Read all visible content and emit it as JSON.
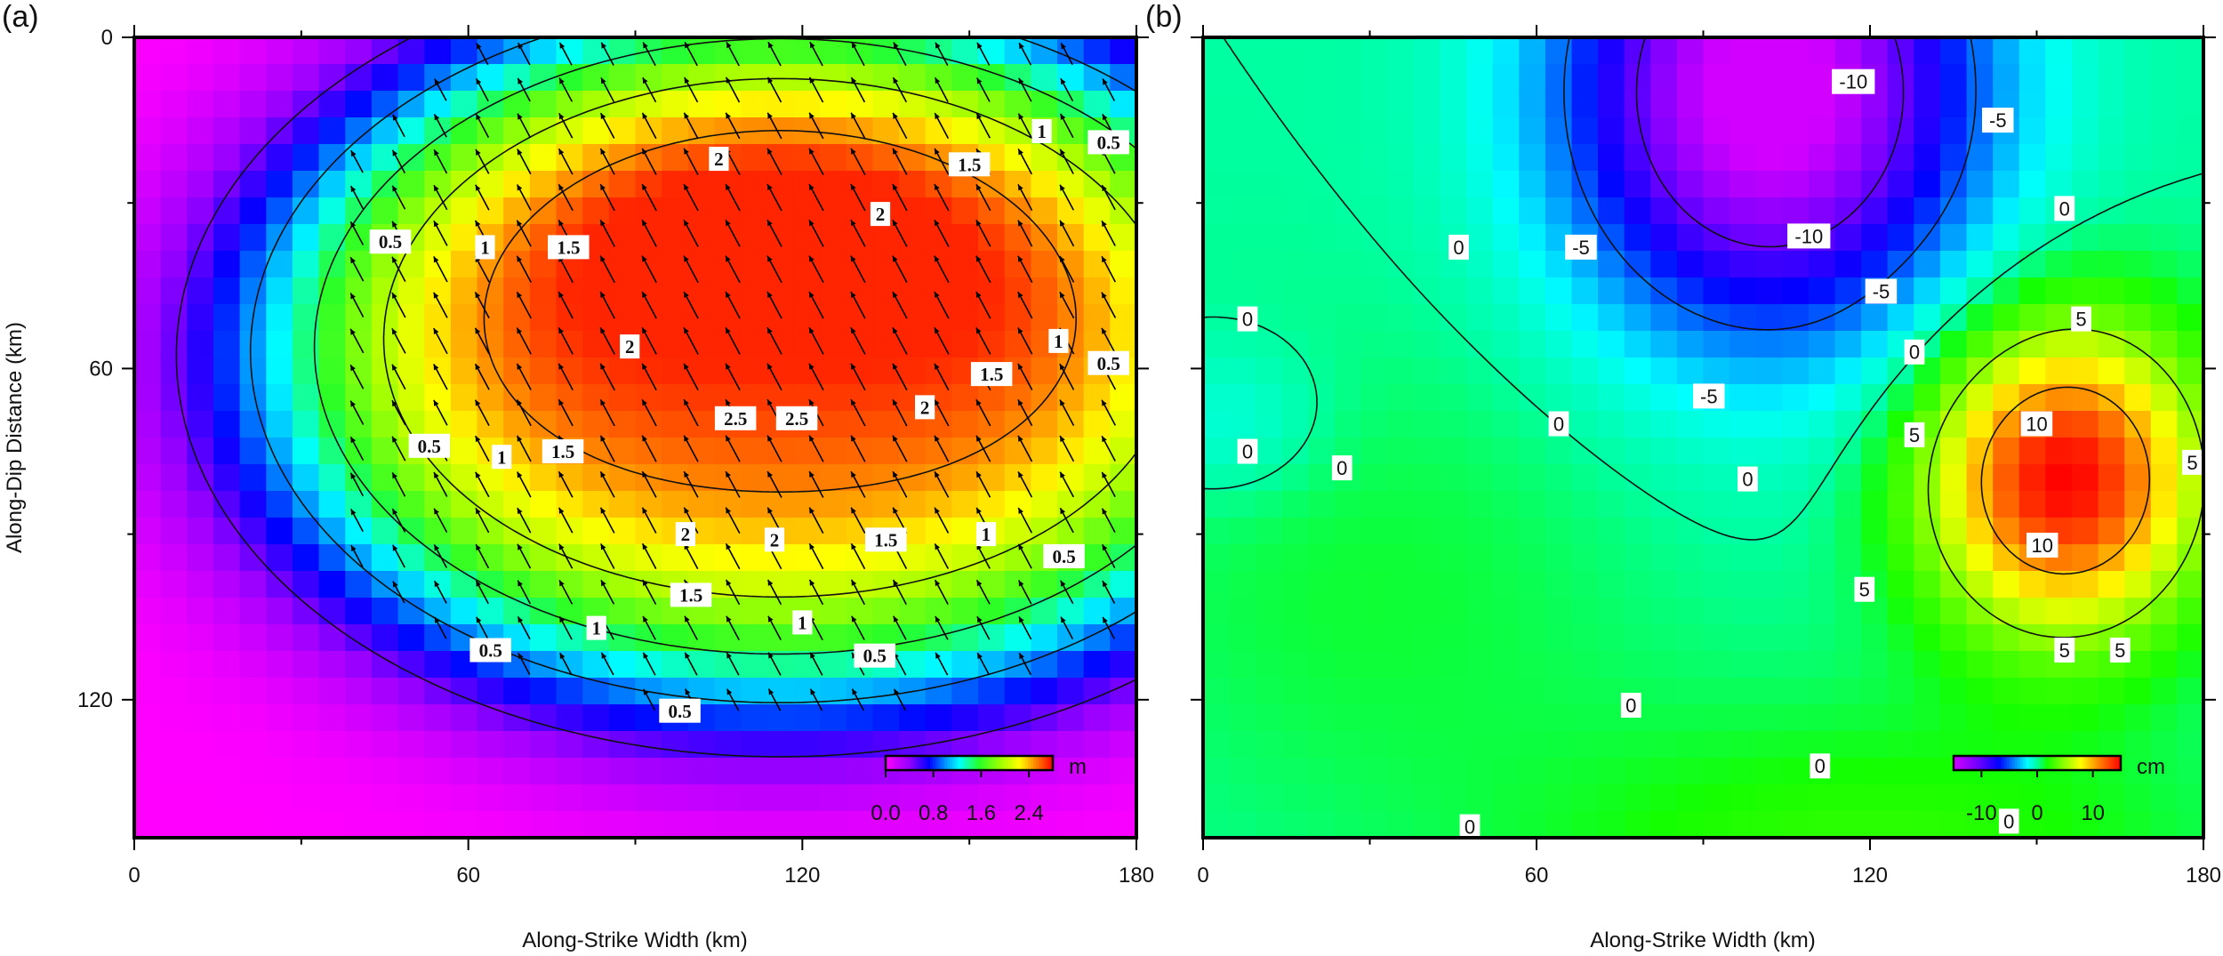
{
  "panels": [
    {
      "panel_label": "(a)",
      "xlabel": "Along-Strike Width (km)",
      "ylabel": "Along-Dip Distance (km)",
      "xticks": [
        "0",
        "60",
        "120",
        "180"
      ],
      "yticks": [
        "0",
        "60",
        "120"
      ],
      "colorbar": {
        "unit": "m",
        "ticks": [
          "0.0",
          "0.8",
          "1.6",
          "2.4"
        ]
      }
    },
    {
      "panel_label": "(b)",
      "xlabel": "Along-Strike Width (km)",
      "ylabel": "",
      "xticks": [
        "0",
        "60",
        "120",
        "180"
      ],
      "yticks": [],
      "colorbar": {
        "unit": "cm",
        "ticks": [
          "-10",
          "0",
          "10"
        ]
      }
    }
  ],
  "chart_data": [
    {
      "type": "heatmap",
      "title": "",
      "panel": "(a)",
      "xlabel": "Along-Strike Width (km)",
      "ylabel": "Along-Dip Distance (km)",
      "xlim": [
        0,
        180
      ],
      "ylim": [
        145,
        0
      ],
      "x_ticks": [
        0,
        60,
        120,
        180
      ],
      "y_ticks": [
        0,
        60,
        120
      ],
      "unit": "m",
      "colormap": "rainbow (magenta-blue-cyan-green-yellow-red)",
      "color_range": [
        0,
        2.8
      ],
      "colorbar_ticks": [
        0.0,
        0.8,
        1.6,
        2.4
      ],
      "field": {
        "description": "fault slip magnitude",
        "peak": {
          "x": 115,
          "y": 60,
          "value": 2.7
        }
      },
      "contour_levels": [
        0.5,
        1,
        1.5,
        2,
        2.5
      ],
      "contour_labels": [
        {
          "x": 46,
          "y": 37,
          "label": "0.5"
        },
        {
          "x": 53,
          "y": 74,
          "label": "0.5"
        },
        {
          "x": 64,
          "y": 111,
          "label": "0.5"
        },
        {
          "x": 98,
          "y": 122,
          "label": "0.5"
        },
        {
          "x": 133,
          "y": 112,
          "label": "0.5"
        },
        {
          "x": 167,
          "y": 94,
          "label": "0.5"
        },
        {
          "x": 175,
          "y": 59,
          "label": "0.5"
        },
        {
          "x": 175,
          "y": 19,
          "label": "0.5"
        },
        {
          "x": 63,
          "y": 38,
          "label": "1"
        },
        {
          "x": 66,
          "y": 76,
          "label": "1"
        },
        {
          "x": 83,
          "y": 107,
          "label": "1"
        },
        {
          "x": 120,
          "y": 106,
          "label": "1"
        },
        {
          "x": 153,
          "y": 90,
          "label": "1"
        },
        {
          "x": 166,
          "y": 55,
          "label": "1"
        },
        {
          "x": 163,
          "y": 17,
          "label": "1"
        },
        {
          "x": 78,
          "y": 38,
          "label": "1.5"
        },
        {
          "x": 77,
          "y": 75,
          "label": "1.5"
        },
        {
          "x": 100,
          "y": 101,
          "label": "1.5"
        },
        {
          "x": 135,
          "y": 91,
          "label": "1.5"
        },
        {
          "x": 154,
          "y": 61,
          "label": "1.5"
        },
        {
          "x": 150,
          "y": 23,
          "label": "1.5"
        },
        {
          "x": 105,
          "y": 22,
          "label": "2"
        },
        {
          "x": 89,
          "y": 56,
          "label": "2"
        },
        {
          "x": 99,
          "y": 90,
          "label": "2"
        },
        {
          "x": 115,
          "y": 91,
          "label": "2"
        },
        {
          "x": 142,
          "y": 67,
          "label": "2"
        },
        {
          "x": 134,
          "y": 32,
          "label": "2"
        },
        {
          "x": 108,
          "y": 69,
          "label": "2.5"
        },
        {
          "x": 119,
          "y": 69,
          "label": "2.5"
        }
      ],
      "vectors": "rake arrows pointing up-left across the slip patch"
    },
    {
      "type": "heatmap",
      "title": "",
      "panel": "(b)",
      "xlabel": "Along-Strike Width (km)",
      "ylabel": "",
      "xlim": [
        0,
        180
      ],
      "ylim": [
        145,
        0
      ],
      "x_ticks": [
        0,
        60,
        120,
        180
      ],
      "unit": "cm",
      "colormap": "rainbow (purple-blue-cyan-green-yellow-red)",
      "color_range": [
        -15,
        15
      ],
      "colorbar_ticks": [
        -10,
        0,
        10
      ],
      "field": {
        "description": "signed displacement difference",
        "minimum": {
          "x": 100,
          "y": 15,
          "value": -15
        },
        "maximum": {
          "x": 155,
          "y": 82,
          "value": 14
        }
      },
      "contour_levels": [
        -10,
        -5,
        0,
        5,
        10
      ],
      "contour_labels": [
        {
          "x": 117,
          "y": 8,
          "label": "-10"
        },
        {
          "x": 109,
          "y": 36,
          "label": "-10"
        },
        {
          "x": 68,
          "y": 38,
          "label": "-5"
        },
        {
          "x": 91,
          "y": 65,
          "label": "-5"
        },
        {
          "x": 122,
          "y": 46,
          "label": "-5"
        },
        {
          "x": 143,
          "y": 15,
          "label": "-5"
        },
        {
          "x": 46,
          "y": 38,
          "label": "0"
        },
        {
          "x": 8,
          "y": 51,
          "label": "0"
        },
        {
          "x": 8,
          "y": 75,
          "label": "0"
        },
        {
          "x": 25,
          "y": 78,
          "label": "0"
        },
        {
          "x": 64,
          "y": 70,
          "label": "0"
        },
        {
          "x": 98,
          "y": 80,
          "label": "0"
        },
        {
          "x": 128,
          "y": 57,
          "label": "0"
        },
        {
          "x": 155,
          "y": 31,
          "label": "0"
        },
        {
          "x": 192,
          "y": 4,
          "label": "0"
        },
        {
          "x": 77,
          "y": 121,
          "label": "0"
        },
        {
          "x": 111,
          "y": 132,
          "label": "0"
        },
        {
          "x": 48,
          "y": 143,
          "label": "0"
        },
        {
          "x": 145,
          "y": 142,
          "label": "0"
        },
        {
          "x": 128,
          "y": 72,
          "label": "5"
        },
        {
          "x": 158,
          "y": 51,
          "label": "5"
        },
        {
          "x": 178,
          "y": 77,
          "label": "5"
        },
        {
          "x": 119,
          "y": 100,
          "label": "5"
        },
        {
          "x": 155,
          "y": 111,
          "label": "5"
        },
        {
          "x": 165,
          "y": 111,
          "label": "5"
        },
        {
          "x": 150,
          "y": 70,
          "label": "10"
        },
        {
          "x": 151,
          "y": 92,
          "label": "10"
        }
      ]
    }
  ]
}
